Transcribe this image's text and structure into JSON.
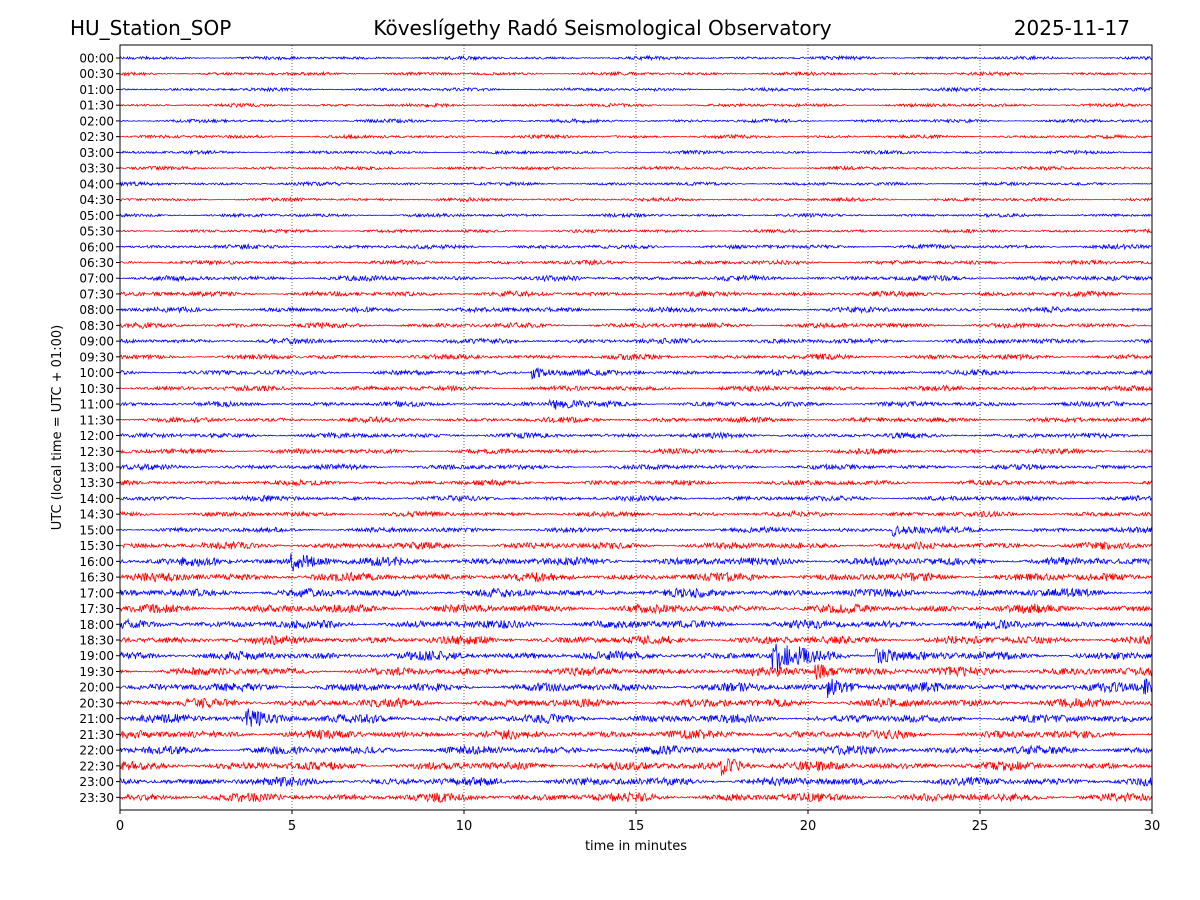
{
  "header": {
    "station": "HU_Station_SOP",
    "observatory": "Köveslígethy Radó Seismological Observatory",
    "date": "2025-11-17"
  },
  "chart_data": {
    "type": "line",
    "title": "Köveslígethy Radó Seismological Observatory",
    "xlabel": "time in minutes",
    "ylabel": "UTC (local time = UTC + 01:00)",
    "xlim": [
      0,
      30
    ],
    "x_ticks": [
      "0",
      "5",
      "10",
      "15",
      "20",
      "25",
      "30"
    ],
    "grid": "vertical dotted lines at every 5 minutes",
    "trace_colors": [
      "#0000ff",
      "#ff0000"
    ],
    "rows": [
      {
        "label": "00:00",
        "amp": 2
      },
      {
        "label": "00:30",
        "amp": 2
      },
      {
        "label": "01:00",
        "amp": 2
      },
      {
        "label": "01:30",
        "amp": 2
      },
      {
        "label": "02:00",
        "amp": 2
      },
      {
        "label": "02:30",
        "amp": 2
      },
      {
        "label": "03:00",
        "amp": 2
      },
      {
        "label": "03:30",
        "amp": 2
      },
      {
        "label": "04:00",
        "amp": 2
      },
      {
        "label": "04:30",
        "amp": 2
      },
      {
        "label": "05:00",
        "amp": 2
      },
      {
        "label": "05:30",
        "amp": 2
      },
      {
        "label": "06:00",
        "amp": 2.5
      },
      {
        "label": "06:30",
        "amp": 2.5
      },
      {
        "label": "07:00",
        "amp": 3
      },
      {
        "label": "07:30",
        "amp": 3
      },
      {
        "label": "08:00",
        "amp": 3
      },
      {
        "label": "08:30",
        "amp": 3
      },
      {
        "label": "09:00",
        "amp": 3
      },
      {
        "label": "09:30",
        "amp": 3
      },
      {
        "label": "10:00",
        "amp": 3
      },
      {
        "label": "10:30",
        "amp": 3
      },
      {
        "label": "11:00",
        "amp": 3
      },
      {
        "label": "11:30",
        "amp": 3
      },
      {
        "label": "12:00",
        "amp": 3
      },
      {
        "label": "12:30",
        "amp": 3
      },
      {
        "label": "13:00",
        "amp": 3
      },
      {
        "label": "13:30",
        "amp": 3
      },
      {
        "label": "14:00",
        "amp": 3
      },
      {
        "label": "14:30",
        "amp": 3
      },
      {
        "label": "15:00",
        "amp": 3
      },
      {
        "label": "15:30",
        "amp": 4
      },
      {
        "label": "16:00",
        "amp": 5
      },
      {
        "label": "16:30",
        "amp": 5
      },
      {
        "label": "17:00",
        "amp": 5
      },
      {
        "label": "17:30",
        "amp": 5
      },
      {
        "label": "18:00",
        "amp": 5
      },
      {
        "label": "18:30",
        "amp": 5
      },
      {
        "label": "19:00",
        "amp": 5
      },
      {
        "label": "19:30",
        "amp": 5
      },
      {
        "label": "20:00",
        "amp": 5
      },
      {
        "label": "20:30",
        "amp": 5
      },
      {
        "label": "21:00",
        "amp": 5
      },
      {
        "label": "21:30",
        "amp": 5
      },
      {
        "label": "22:00",
        "amp": 5
      },
      {
        "label": "22:30",
        "amp": 5
      },
      {
        "label": "23:00",
        "amp": 5
      },
      {
        "label": "23:30",
        "amp": 5
      }
    ],
    "events": [
      {
        "row": "15:00",
        "minute": 22.5,
        "amp": 6
      },
      {
        "row": "16:00",
        "minute": 5.0,
        "amp": 8
      },
      {
        "row": "19:00",
        "minute": 19.0,
        "amp": 16
      },
      {
        "row": "19:00",
        "minute": 22.0,
        "amp": 8
      },
      {
        "row": "19:30",
        "minute": 20.2,
        "amp": 8
      },
      {
        "row": "20:00",
        "minute": 20.6,
        "amp": 8
      },
      {
        "row": "20:00",
        "minute": 29.8,
        "amp": 8
      },
      {
        "row": "10:00",
        "minute": 12.0,
        "amp": 6
      },
      {
        "row": "11:00",
        "minute": 12.5,
        "amp": 6
      },
      {
        "row": "22:30",
        "minute": 17.5,
        "amp": 8
      },
      {
        "row": "21:00",
        "minute": 3.7,
        "amp": 8
      }
    ]
  }
}
